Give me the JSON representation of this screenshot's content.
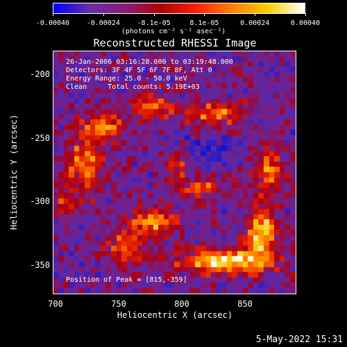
{
  "colorbar": {
    "ticks": [
      "-0.00040",
      "-0.00024",
      "-8.1e-05",
      "8.1e-05",
      "0.00024",
      "0.00040"
    ],
    "units": "(photons cm⁻² s⁻¹ asec⁻²)",
    "colors": [
      "#0000ff",
      "#6a2ca8",
      "#8b1a7a",
      "#b00000",
      "#ff2000",
      "#ff8000",
      "#ffd000",
      "#ffffff"
    ]
  },
  "title": "Reconstructed RHESSI Image",
  "info": {
    "line1": "26-Jan-2006 03:16:28.000 to 03:19:48.000",
    "line2": "Detectors: 3F 4F 5F 6F 7F 8F, Att 0",
    "line3": "Energy Range: 25.0 - 50.0 keV",
    "line4": "Clean     Total counts: 5.19E+03",
    "peak": "Position of Peak = [815,-359]"
  },
  "axes": {
    "xlabel": "Heliocentric X (arcsec)",
    "ylabel": "Heliocentric Y (arcsec)",
    "xticks": [
      "700",
      "750",
      "800",
      "850"
    ],
    "yticks": [
      "-200",
      "-250",
      "-300",
      "-350"
    ]
  },
  "chart_data": {
    "type": "heatmap",
    "title": "Reconstructed RHESSI Image",
    "xlabel": "Heliocentric X (arcsec)",
    "ylabel": "Heliocentric Y (arcsec)",
    "xlim": [
      698,
      890
    ],
    "ylim": [
      -374,
      -183
    ],
    "color_range": [
      -0.0004,
      0.0004
    ],
    "peak": [
      815,
      -359
    ]
  },
  "footer": {
    "date": "5-May-2022 15:31"
  }
}
